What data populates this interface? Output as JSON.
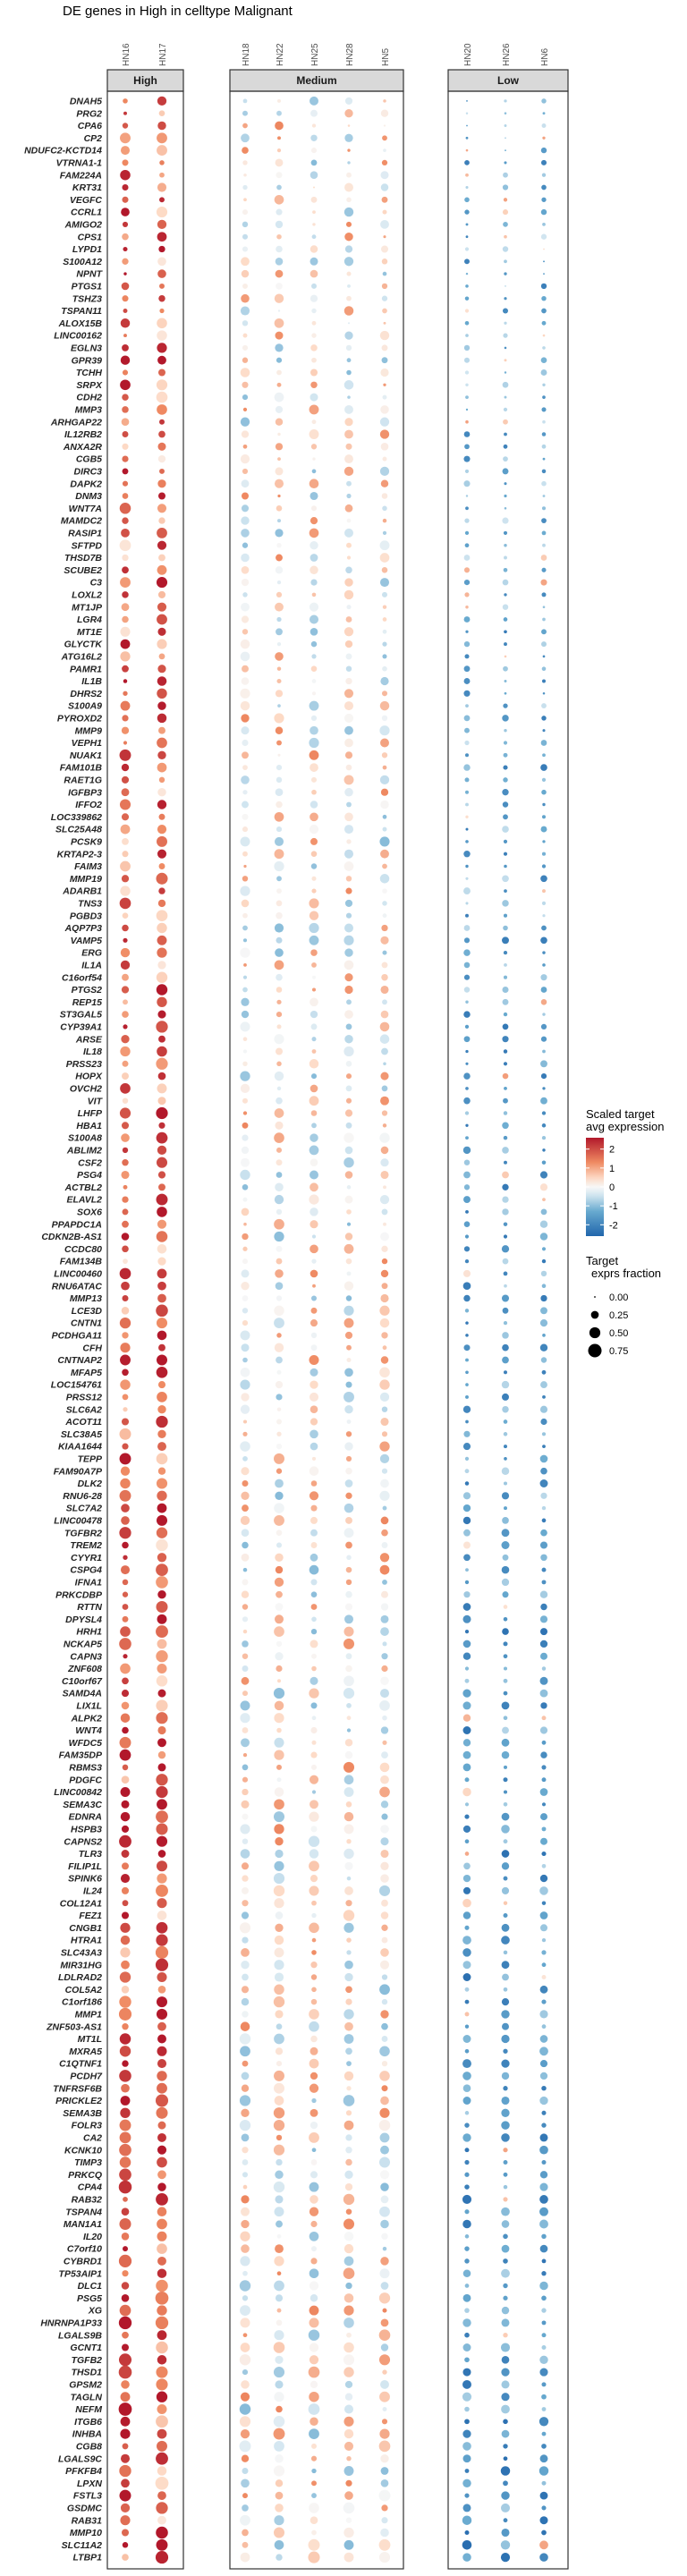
{
  "chart_data": {
    "type": "dotplot",
    "title": "DE genes in High in celltype Malignant",
    "groups": [
      {
        "name": "High",
        "columns": [
          "HN16",
          "HN17"
        ]
      },
      {
        "name": "Medium",
        "columns": [
          "HN18",
          "HN22",
          "HN25",
          "HN28",
          "HN5"
        ]
      },
      {
        "name": "Low",
        "columns": [
          "HN20",
          "HN26",
          "HN6"
        ]
      }
    ],
    "genes": [
      "DNAH5",
      "PRG2",
      "CPA6",
      "CP2",
      "NDUFC2-KCTD14",
      "VTRNA1-1",
      "FAM224A",
      "KRT31",
      "VEGFC",
      "CCRL1",
      "AMIGO2",
      "CPS1",
      "LYPD1",
      "S100A12",
      "NPNT",
      "PTGS1",
      "TSHZ3",
      "TSPAN11",
      "ALOX15B",
      "LINC00162",
      "EGLN3",
      "GPR39",
      "TCHH",
      "SRPX",
      "CDH2",
      "MMP3",
      "ARHGAP22",
      "IL12RB2",
      "ANXA2R",
      "CGB5",
      "DIRC3",
      "DAPK2",
      "DNM3",
      "WNT7A",
      "MAMDC2",
      "RASIP1",
      "SFTPD",
      "THSD7B",
      "SCUBE2",
      "C3",
      "LOXL2",
      "MT1JP",
      "LGR4",
      "MT1E",
      "GLYCTK",
      "ATG16L2",
      "PAMR1",
      "IL1B",
      "DHRS2",
      "S100A9",
      "PYROXD2",
      "MMP9",
      "VEPH1",
      "NUAK1",
      "FAM101B",
      "RAET1G",
      "IGFBP3",
      "IFFO2",
      "LOC339862",
      "SLC25A48",
      "PCSK9",
      "KRTAP2-3",
      "FAIM3",
      "MMP19",
      "ADARB1",
      "TNS3",
      "PGBD3",
      "AQP7P3",
      "VAMP5",
      "ERG",
      "IL1A",
      "C16orf54",
      "PTGS2",
      "REP15",
      "ST3GAL5",
      "CYP39A1",
      "ARSE",
      "IL18",
      "PRSS23",
      "HOPX",
      "OVCH2",
      "VIT",
      "LHFP",
      "HBA1",
      "S100A8",
      "ABLIM2",
      "CSF2",
      "PSG4",
      "ACTBL2",
      "ELAVL2",
      "SOX6",
      "PPAPDC1A",
      "CDKN2B-AS1",
      "CCDC80",
      "FAM134B",
      "LINC00460",
      "RNU6ATAC",
      "MMP13",
      "LCE3D",
      "CNTN1",
      "PCDHGA11",
      "CFH",
      "CNTNAP2",
      "MFAP5",
      "LOC154761",
      "PRSS12",
      "SLC6A2",
      "ACOT11",
      "SLC38A5",
      "KIAA1644",
      "TEPP",
      "FAM90A7P",
      "DLK2",
      "RNU6-28",
      "SLC7A2",
      "LINC00478",
      "TGFBR2",
      "TREM2",
      "CYYR1",
      "CSPG4",
      "IFNA1",
      "PRKCDBP",
      "RTTN",
      "DPYSL4",
      "HRH1",
      "NCKAP5",
      "CAPN3",
      "ZNF608",
      "C10orf67",
      "SAMD4A",
      "LIX1L",
      "ALPK2",
      "WNT4",
      "WFDC5",
      "FAM35DP",
      "RBMS3",
      "PDGFC",
      "LINC00842",
      "SEMA3C",
      "EDNRA",
      "HSPB3",
      "CAPNS2",
      "TLR3",
      "FILIP1L",
      "SPINK6",
      "IL24",
      "COL12A1",
      "FEZ1",
      "CNGB1",
      "HTRA1",
      "SLC43A3",
      "MIR31HG",
      "LDLRAD2",
      "COL5A2",
      "C1orf186",
      "MMP1",
      "ZNF503-AS1",
      "MT1L",
      "MXRA5",
      "C1QTNF1",
      "PCDH7",
      "TNFRSF6B",
      "PRICKLE2",
      "SEMA3B",
      "FOLR3",
      "CA2",
      "KCNK10",
      "TIMP3",
      "PRKCQ",
      "CPA4",
      "RAB32",
      "TSPAN4",
      "MAN1A1",
      "IL20",
      "C7orf10",
      "CYBRD1",
      "TP53AIP1",
      "DLC1",
      "PSG5",
      "XG",
      "HNRNPA1P33",
      "LGALS9B",
      "GCNT1",
      "TGFB2",
      "THSD1",
      "GPSM2",
      "TAGLN",
      "NEFM",
      "ITGB6",
      "INHBA",
      "CGB8",
      "LGALS9C",
      "PFKFB4",
      "LPXN",
      "FSTL3",
      "GSDMC",
      "RAB31",
      "MMP10",
      "SLC11A2",
      "LTBP1"
    ],
    "legend": {
      "color_title_lines": [
        "Scaled target",
        "avg expression"
      ],
      "color_ticks": [
        "2",
        "1",
        "0",
        "-1",
        "-2"
      ],
      "color_tick_values": [
        2,
        1,
        0,
        -1,
        -2
      ],
      "color_range": [
        -2.6,
        2.6
      ],
      "size_title_lines": [
        "Target",
        "exprs fraction"
      ],
      "size_ticks": [
        "0.00",
        "0.25",
        "0.50",
        "0.75"
      ],
      "size_tick_values": [
        0,
        0.25,
        0.5,
        0.75
      ],
      "size_max": 0.85
    },
    "palette": {
      "high": "#b2182b",
      "mid_high": "#ef8a62",
      "light_high": "#fddbc7",
      "neutral": "#f7f7f7",
      "light_low": "#d1e5f0",
      "mid_low": "#67a9cf",
      "low": "#2166ac",
      "panel_border": "#333333",
      "strip_fill": "#d9d9d9"
    },
    "seed": 17
  }
}
